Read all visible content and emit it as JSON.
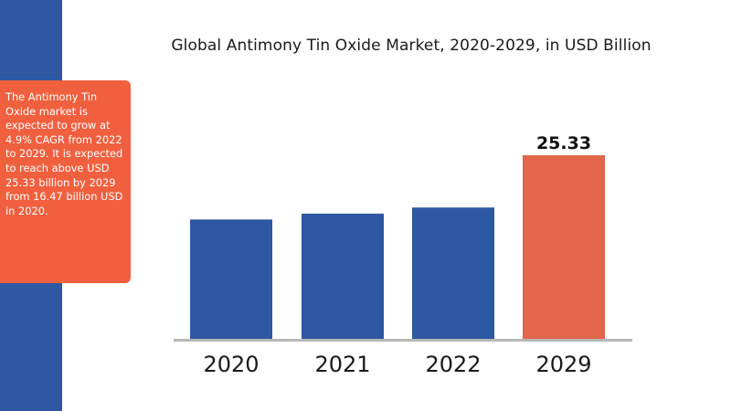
{
  "colors": {
    "strip": "#2e57a4",
    "info_box": "#f0603f",
    "bar_default": "#2e57a4",
    "bar_highlight": "#e26649",
    "baseline": "#b8b8b8"
  },
  "info_box": {
    "text": "The Antimony Tin Oxide market is expected to grow at 4.9% CAGR from 2022 to 2029. It is expected to reach above USD 25.33 billion by 2029 from 16.47 billion USD in 2020."
  },
  "chart_data": {
    "type": "bar",
    "title": "Global Antimony Tin Oxide Market, 2020-2029, in USD Billion",
    "categories": [
      "2020",
      "2021",
      "2022",
      "2029"
    ],
    "values": [
      16.47,
      17.28,
      18.12,
      25.33
    ],
    "value_labels": [
      "",
      "",
      "",
      "25.33"
    ],
    "highlight_index": 3,
    "ylim": [
      0,
      25.33
    ],
    "xlabel": "",
    "ylabel": "",
    "grid": false
  }
}
